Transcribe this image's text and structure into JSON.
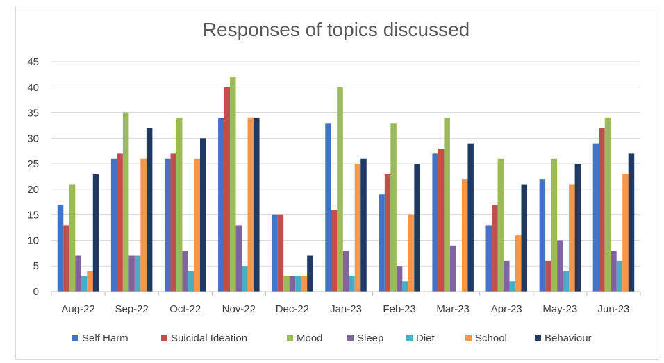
{
  "chart_data": {
    "type": "bar",
    "title": "Responses of topics discussed",
    "xlabel": "",
    "ylabel": "",
    "ylim": [
      0,
      45
    ],
    "yticks": [
      0,
      5,
      10,
      15,
      20,
      25,
      30,
      35,
      40,
      45
    ],
    "grid": true,
    "legend_position": "bottom",
    "categories": [
      "Aug-22",
      "Sep-22",
      "Oct-22",
      "Nov-22",
      "Dec-22",
      "Jan-23",
      "Feb-23",
      "Mar-23",
      "Apr-23",
      "May-23",
      "Jun-23"
    ],
    "series": [
      {
        "name": "Self Harm",
        "color": "#4472C4",
        "values": [
          17,
          26,
          26,
          34,
          15,
          33,
          19,
          27,
          13,
          22,
          29
        ]
      },
      {
        "name": "Suicidal Ideation",
        "color": "#C0504D",
        "values": [
          13,
          27,
          27,
          40,
          15,
          16,
          23,
          28,
          17,
          6,
          32
        ]
      },
      {
        "name": "Mood",
        "color": "#9BBB59",
        "values": [
          21,
          35,
          34,
          42,
          3,
          40,
          33,
          34,
          26,
          26,
          34
        ]
      },
      {
        "name": "Sleep",
        "color": "#8064A2",
        "values": [
          7,
          7,
          8,
          13,
          3,
          8,
          5,
          9,
          6,
          10,
          8
        ]
      },
      {
        "name": "Diet",
        "color": "#4BACC6",
        "values": [
          3,
          7,
          4,
          5,
          3,
          3,
          2,
          0,
          2,
          4,
          6
        ]
      },
      {
        "name": "School",
        "color": "#F79646",
        "values": [
          4,
          26,
          26,
          34,
          3,
          25,
          15,
          22,
          11,
          21,
          23
        ]
      },
      {
        "name": "Behaviour",
        "color": "#1F3864",
        "values": [
          23,
          32,
          30,
          34,
          7,
          26,
          25,
          29,
          21,
          25,
          27
        ]
      }
    ]
  }
}
